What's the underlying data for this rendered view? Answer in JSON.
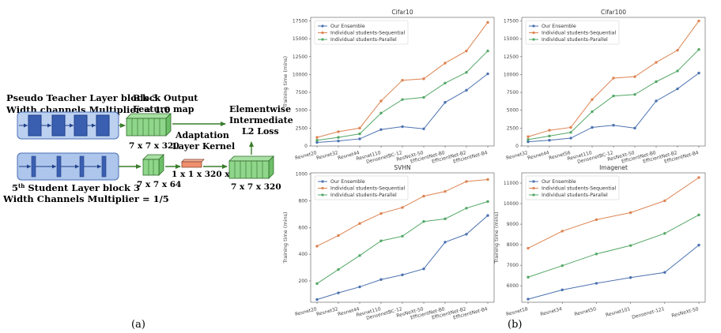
{
  "diagram": {
    "teacher_title_line1": "Pseudo Teacher Layer block 3",
    "teacher_title_line2": "Width channels Multiplier = 1.0",
    "block_output_line1": "Block Output",
    "block_output_line2": "Feature map",
    "teacher_dim": "7 x 7 x 320",
    "adaptation_line1": "Adaptation",
    "adaptation_line2": "Layer Kernel",
    "kernel_dim": "1 x 1 x 320 x 64",
    "student_dim": "7 x 7 x 64",
    "elementwise_line1": "Elementwise",
    "elementwise_line2": "Intermediate",
    "elementwise_line3": "L2 Loss",
    "output_dim": "7 x 7 x 320",
    "student_title_sup": "th",
    "student_title_num": "5",
    "student_title_rest": " Student Layer block 3",
    "student_title_line2": "Width Channels Multiplier = 1/5",
    "colors": {
      "teacher_block": "#3b5fb0",
      "student_box": "#aec6ec",
      "feature": "#8fd68a",
      "kernel": "#f08f6e",
      "arrow": "#3a7d2c"
    }
  },
  "captions": {
    "a": "(a)",
    "b": "(b)"
  },
  "chart_data": [
    {
      "type": "line",
      "title": "Cifar10",
      "ylabel": "Training time (mins)",
      "categories": [
        "Resnet20",
        "Resnet32",
        "Resnet44",
        "Resnet110",
        "DensenetBC-12",
        "ResNeXt-50",
        "EfficientNet-B0",
        "EfficientNet-B2",
        "EfficientNet-B4"
      ],
      "ylim": [
        0,
        18000
      ],
      "yticks": [
        0,
        2500,
        5000,
        7500,
        10000,
        12500,
        15000,
        17500
      ],
      "legend": "top-left",
      "series": [
        {
          "name": "Our Ensemble",
          "color": "#4c72b0",
          "values": [
            500,
            700,
            1000,
            2300,
            2700,
            2400,
            6100,
            7800,
            10100
          ]
        },
        {
          "name": "Individual students-Sequential",
          "color": "#dd8452",
          "values": [
            1200,
            2000,
            2500,
            6300,
            9200,
            9400,
            11600,
            13300,
            17300
          ]
        },
        {
          "name": "Individual students-Parallel",
          "color": "#55a868",
          "values": [
            800,
            1200,
            1700,
            4600,
            6500,
            6800,
            8800,
            10300,
            13300
          ]
        }
      ]
    },
    {
      "type": "line",
      "title": "Cifar100",
      "ylabel": "",
      "categories": [
        "Resnet32",
        "Resnet44",
        "Resnet56",
        "Resnet110",
        "DensenetBC-12",
        "ResNeXt-50",
        "EfficientNet-B0",
        "EfficientNet-B2",
        "EfficientNet-B4"
      ],
      "ylim": [
        0,
        18000
      ],
      "yticks": [
        0,
        2500,
        5000,
        7500,
        10000,
        12500,
        15000,
        17500
      ],
      "legend": "top-left",
      "series": [
        {
          "name": "Our Ensemble",
          "color": "#4c72b0",
          "values": [
            600,
            800,
            1100,
            2600,
            2900,
            2500,
            6300,
            8000,
            10200
          ]
        },
        {
          "name": "Individual students-Sequential",
          "color": "#dd8452",
          "values": [
            1300,
            2200,
            2600,
            6500,
            9500,
            9700,
            11700,
            13400,
            17500
          ]
        },
        {
          "name": "Individual students-Parallel",
          "color": "#55a868",
          "values": [
            900,
            1400,
            1900,
            4800,
            7000,
            7200,
            9000,
            10500,
            13500
          ]
        }
      ]
    },
    {
      "type": "line",
      "title": "SVHN",
      "ylabel": "Training time (mins)",
      "categories": [
        "Resnet20",
        "Resnet32",
        "Resnet44",
        "Resnet110",
        "DensenetBC-12",
        "ResNeXt-50",
        "EfficientNet-B0",
        "EfficientNet-B2",
        "EfficientNet-B4"
      ],
      "ylim": [
        40,
        1010
      ],
      "yticks": [
        200,
        400,
        600,
        800,
        1000
      ],
      "legend": "top-left",
      "series": [
        {
          "name": "Our Ensemble",
          "color": "#4c72b0",
          "values": [
            60,
            110,
            155,
            210,
            245,
            290,
            490,
            550,
            690
          ]
        },
        {
          "name": "Individual students-Sequential",
          "color": "#dd8452",
          "values": [
            460,
            540,
            630,
            705,
            750,
            835,
            870,
            945,
            960
          ]
        },
        {
          "name": "Individual students-Parallel",
          "color": "#55a868",
          "values": [
            180,
            285,
            390,
            500,
            535,
            645,
            665,
            745,
            795
          ]
        }
      ]
    },
    {
      "type": "line",
      "title": "Imagenet",
      "ylabel": "Training time (mins)",
      "categories": [
        "Resnet18",
        "Resnet34",
        "Resnet50",
        "Resnet101",
        "Densenet-121",
        "ResNeXt-50"
      ],
      "ylim": [
        5200,
        11500
      ],
      "yticks": [
        6000,
        7000,
        8000,
        9000,
        10000,
        11000
      ],
      "legend": "top-left",
      "series": [
        {
          "name": "Our Ensemble",
          "color": "#4c72b0",
          "values": [
            5350,
            5800,
            6120,
            6400,
            6650,
            7980
          ]
        },
        {
          "name": "Individual students-Sequential",
          "color": "#dd8452",
          "values": [
            7830,
            8660,
            9220,
            9560,
            10140,
            11270
          ]
        },
        {
          "name": "Individual students-Parallel",
          "color": "#55a868",
          "values": [
            6420,
            6980,
            7550,
            7960,
            8550,
            9450
          ]
        }
      ]
    }
  ]
}
